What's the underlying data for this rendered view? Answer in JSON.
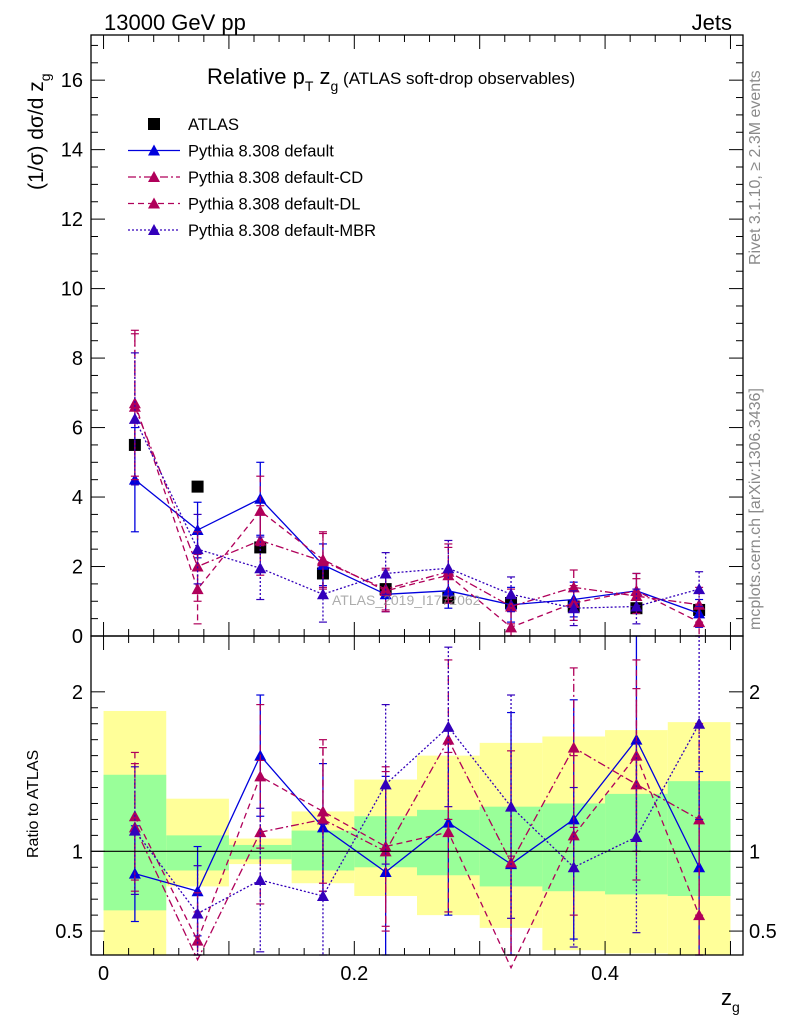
{
  "header": {
    "energy_label": "13000 GeV pp",
    "category_label": "Jets",
    "rivet_label": "Rivet 3.1.10, ≥ 2.3M events",
    "mcplots_label": "mcplots.cern.ch [arXiv:1306.3436]",
    "watermark": "ATLAS_2019_I1772062"
  },
  "colors": {
    "atlas": "#000000",
    "default": "#0000dd",
    "cd": "#b0005a",
    "dl": "#b0005a",
    "mbr": "#3300bb",
    "band_inner": "#99ff99",
    "band_outer": "#ffff99"
  },
  "chart_data": [
    {
      "type": "scatter",
      "title": "Relative p_T z_g (ATLAS soft-drop observables)",
      "title_parts": {
        "main": "Relative p",
        "sub1": "T",
        "mid": " z",
        "sub2": "g",
        "tail": " (ATLAS soft-drop observables)"
      },
      "xlabel": "z_g",
      "ylabel": "(1/σ) dσ/d z_g",
      "ylabel_parts": {
        "main": "(1/σ) dσ/d z",
        "sub": "g"
      },
      "xlim": [
        -0.01,
        0.51
      ],
      "ylim": [
        0,
        17.3
      ],
      "y_ticks": [
        0,
        2,
        4,
        6,
        8,
        10,
        12,
        14,
        16
      ],
      "y_tick_labels": [
        "0",
        "2",
        "4",
        "6",
        "8",
        "10",
        "12",
        "14",
        "16"
      ],
      "x": [
        0.025,
        0.075,
        0.125,
        0.175,
        0.225,
        0.275,
        0.325,
        0.375,
        0.425,
        0.475
      ],
      "legend_position": "top-left",
      "series": [
        {
          "key": "atlas",
          "name": "ATLAS",
          "style": "markers",
          "values": [
            5.5,
            4.3,
            2.55,
            1.8,
            1.35,
            1.1,
            0.95,
            0.85,
            0.8,
            0.75
          ]
        },
        {
          "key": "default",
          "name": "Pythia 8.308 default",
          "style": "solid",
          "values": [
            4.5,
            3.05,
            3.95,
            2.05,
            1.2,
            1.3,
            0.9,
            1.05,
            1.3,
            0.65
          ],
          "errors": [
            1.5,
            0.8,
            1.05,
            0.6,
            0.5,
            0.5,
            0.5,
            0.5,
            0.5,
            0.4
          ]
        },
        {
          "key": "cd",
          "name": "Pythia 8.308 default-CD",
          "style": "dashdot",
          "values": [
            6.6,
            2.0,
            2.75,
            2.15,
            1.35,
            1.85,
            0.85,
            1.4,
            1.15,
            0.9
          ],
          "errors": [
            2.1,
            1.0,
            1.0,
            0.8,
            0.6,
            0.8,
            0.5,
            0.5,
            0.5,
            0.5
          ]
        },
        {
          "key": "dl",
          "name": "Pythia 8.308 default-DL",
          "style": "dashed",
          "values": [
            6.7,
            1.35,
            3.6,
            2.2,
            1.3,
            1.75,
            0.25,
            0.95,
            1.3,
            0.4
          ],
          "errors": [
            2.1,
            1.0,
            1.0,
            0.8,
            0.6,
            0.8,
            0.5,
            0.5,
            0.5,
            0.4
          ]
        },
        {
          "key": "mbr",
          "name": "Pythia 8.308 default-MBR",
          "style": "dotted",
          "values": [
            6.25,
            2.5,
            1.95,
            1.2,
            1.8,
            1.95,
            1.2,
            0.8,
            0.85,
            1.35
          ],
          "errors": [
            1.9,
            1.0,
            0.9,
            0.8,
            0.6,
            0.8,
            0.5,
            0.5,
            0.5,
            0.5
          ]
        }
      ]
    },
    {
      "type": "scatter",
      "xlabel": "z_g",
      "ylabel": "Ratio to ATLAS",
      "xlim": [
        -0.01,
        0.51
      ],
      "ylim": [
        0.35,
        2.35
      ],
      "x_ticks": [
        0,
        0.2,
        0.4
      ],
      "x_tick_labels": [
        "0",
        "0.2",
        "0.4"
      ],
      "y_ticks": [
        0.5,
        1,
        2
      ],
      "y_tick_labels": [
        "0.5",
        "1",
        "2"
      ],
      "x": [
        0.025,
        0.075,
        0.125,
        0.175,
        0.225,
        0.275,
        0.325,
        0.375,
        0.425,
        0.475
      ],
      "bands": {
        "edges": [
          0,
          0.05,
          0.1,
          0.15,
          0.2,
          0.25,
          0.3,
          0.35,
          0.4,
          0.45,
          0.5
        ],
        "inner": [
          [
            0.63,
            1.48
          ],
          [
            0.88,
            1.1
          ],
          [
            0.95,
            1.04
          ],
          [
            0.88,
            1.13
          ],
          [
            0.9,
            1.22
          ],
          [
            0.85,
            1.26
          ],
          [
            0.78,
            1.28
          ],
          [
            0.75,
            1.3
          ],
          [
            0.73,
            1.36
          ],
          [
            0.72,
            1.44
          ]
        ],
        "outer": [
          [
            0.35,
            1.88
          ],
          [
            0.78,
            1.33
          ],
          [
            0.92,
            1.08
          ],
          [
            0.8,
            1.25
          ],
          [
            0.72,
            1.45
          ],
          [
            0.6,
            1.6
          ],
          [
            0.52,
            1.68
          ],
          [
            0.38,
            1.72
          ],
          [
            0.36,
            1.76
          ],
          [
            0.35,
            1.81
          ]
        ]
      },
      "series": [
        {
          "key": "default",
          "name": "Pythia 8.308 default",
          "style": "solid",
          "values": [
            0.86,
            0.75,
            1.6,
            1.15,
            0.87,
            1.18,
            0.92,
            1.2,
            1.7,
            0.9
          ],
          "errors": [
            0.3,
            0.28,
            0.38,
            0.4,
            0.6,
            0.58,
            0.95,
            0.75,
            0.7,
            0.6
          ]
        },
        {
          "key": "cd",
          "name": "Pythia 8.308 default-CD",
          "style": "dashdot",
          "values": [
            1.15,
            0.32,
            1.12,
            1.2,
            1.0,
            1.7,
            0.93,
            1.65,
            1.42,
            1.2
          ],
          "errors": [
            0.4,
            0.3,
            0.45,
            0.45,
            0.5,
            0.5,
            0.7,
            0.5,
            0.6,
            0.6
          ]
        },
        {
          "key": "dl",
          "name": "Pythia 8.308 default-DL",
          "style": "dashed",
          "values": [
            1.22,
            0.44,
            1.47,
            1.25,
            1.03,
            1.12,
            0.27,
            1.1,
            1.6,
            0.6
          ],
          "errors": [
            0.4,
            0.3,
            0.45,
            0.45,
            0.5,
            0.5,
            0.7,
            0.5,
            0.6,
            0.6
          ]
        },
        {
          "key": "mbr",
          "name": "Pythia 8.308 default-MBR",
          "style": "dotted",
          "values": [
            1.13,
            0.61,
            0.82,
            0.72,
            1.42,
            1.78,
            1.28,
            0.9,
            1.09,
            1.8
          ],
          "errors": [
            0.4,
            0.3,
            0.45,
            0.45,
            0.5,
            0.5,
            0.7,
            0.5,
            0.6,
            0.6
          ]
        }
      ]
    }
  ]
}
